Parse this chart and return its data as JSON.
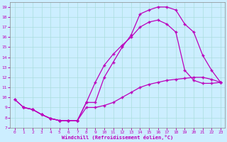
{
  "xlabel": "Windchill (Refroidissement éolien,°C)",
  "background_color": "#cceeff",
  "line_color": "#bb00bb",
  "xlim": [
    -0.5,
    23.5
  ],
  "ylim": [
    7,
    19.5
  ],
  "xticks": [
    0,
    1,
    2,
    3,
    4,
    5,
    6,
    7,
    8,
    9,
    10,
    11,
    12,
    13,
    14,
    15,
    16,
    17,
    18,
    19,
    20,
    21,
    22,
    23
  ],
  "yticks": [
    7,
    8,
    9,
    10,
    11,
    12,
    13,
    14,
    15,
    16,
    17,
    18,
    19
  ],
  "curve_upper_x": [
    0,
    1,
    2,
    3,
    4,
    5,
    6,
    7,
    8,
    9,
    10,
    11,
    12,
    13,
    14,
    15,
    16,
    17,
    18,
    19,
    20,
    21,
    22,
    23
  ],
  "curve_upper_y": [
    9.8,
    9.0,
    8.8,
    8.3,
    7.9,
    7.7,
    7.7,
    7.7,
    9.5,
    11.5,
    13.2,
    14.3,
    15.2,
    16.0,
    17.0,
    17.5,
    17.7,
    17.3,
    16.5,
    12.7,
    11.7,
    11.4,
    11.4,
    11.5
  ],
  "curve_peak_x": [
    0,
    1,
    2,
    3,
    4,
    5,
    6,
    7,
    8,
    9,
    10,
    11,
    12,
    13,
    14,
    15,
    16,
    17,
    18,
    19,
    20,
    21,
    22,
    23
  ],
  "curve_peak_y": [
    9.8,
    9.0,
    8.8,
    8.3,
    7.9,
    7.7,
    7.7,
    7.7,
    9.5,
    9.5,
    12.0,
    13.5,
    15.0,
    16.2,
    18.3,
    18.7,
    19.0,
    19.0,
    18.7,
    17.3,
    16.5,
    14.2,
    12.7,
    11.5
  ],
  "curve_lower_x": [
    1,
    2,
    3,
    4,
    5,
    6,
    7,
    8,
    9,
    10,
    11,
    12,
    13,
    14,
    15,
    16,
    17,
    18,
    19,
    20,
    21,
    22,
    23
  ],
  "curve_lower_y": [
    9.0,
    8.8,
    8.3,
    7.9,
    7.7,
    7.7,
    7.7,
    9.0,
    9.0,
    9.2,
    9.5,
    10.0,
    10.5,
    11.0,
    11.3,
    11.5,
    11.7,
    11.8,
    11.9,
    12.0,
    12.0,
    11.8,
    11.5
  ],
  "grid_color": "#aadddd",
  "marker": "+"
}
